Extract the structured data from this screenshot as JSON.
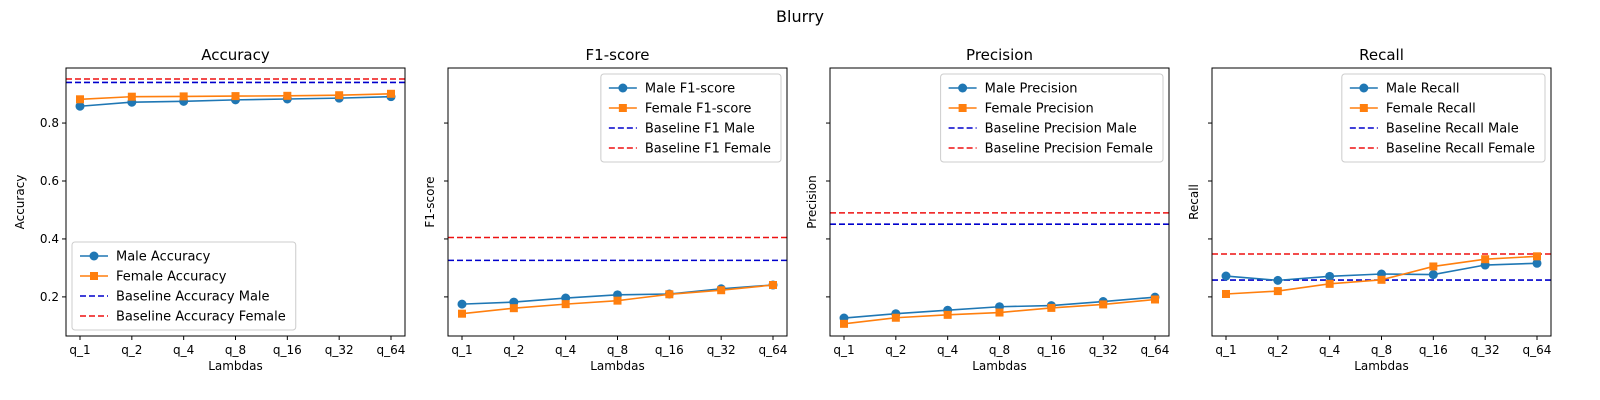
{
  "figure": {
    "suptitle": "Blurry"
  },
  "chart_data": [
    {
      "type": "line",
      "title": "Accuracy",
      "xlabel": "Lambdas",
      "ylabel": "Accuracy",
      "categories": [
        "q_1",
        "q_2",
        "q_4",
        "q_8",
        "q_16",
        "q_32",
        "q_64"
      ],
      "ylim": [
        0.065,
        0.99
      ],
      "yticks": [
        0.2,
        0.4,
        0.6,
        0.8
      ],
      "ytick_labels": [
        "0.2",
        "0.4",
        "0.6",
        "0.8"
      ],
      "legend_position": "lower-left",
      "series": [
        {
          "name": "Male Accuracy",
          "values": [
            0.858,
            0.872,
            0.875,
            0.88,
            0.883,
            0.886,
            0.891
          ],
          "color": "#1f77b4",
          "marker": "circle"
        },
        {
          "name": "Female Accuracy",
          "values": [
            0.882,
            0.891,
            0.892,
            0.893,
            0.894,
            0.896,
            0.901
          ],
          "color": "#ff7f0e",
          "marker": "square"
        }
      ],
      "baselines": [
        {
          "name": "Baseline Accuracy Male",
          "value": 0.94,
          "color": "#0000cc"
        },
        {
          "name": "Baseline Accuracy Female",
          "value": 0.952,
          "color": "#ee1111"
        }
      ]
    },
    {
      "type": "line",
      "title": "F1-score",
      "xlabel": "Lambdas",
      "ylabel": "F1-score",
      "categories": [
        "q_1",
        "q_2",
        "q_4",
        "q_8",
        "q_16",
        "q_32",
        "q_64"
      ],
      "ylim": [
        0.065,
        0.99
      ],
      "yticks": [
        0.2,
        0.4,
        0.6,
        0.8
      ],
      "ytick_labels": [
        "",
        "",
        "",
        ""
      ],
      "legend_position": "upper-right",
      "series": [
        {
          "name": "Male F1-score",
          "values": [
            0.175,
            0.182,
            0.196,
            0.207,
            0.21,
            0.228,
            0.241
          ],
          "color": "#1f77b4",
          "marker": "circle"
        },
        {
          "name": "Female F1-score",
          "values": [
            0.142,
            0.161,
            0.175,
            0.187,
            0.209,
            0.223,
            0.241
          ],
          "color": "#ff7f0e",
          "marker": "square"
        }
      ],
      "baselines": [
        {
          "name": "Baseline F1 Male",
          "value": 0.326,
          "color": "#0000cc"
        },
        {
          "name": "Baseline F1 Female",
          "value": 0.405,
          "color": "#ee1111"
        }
      ]
    },
    {
      "type": "line",
      "title": "Precision",
      "xlabel": "Lambdas",
      "ylabel": "Precision",
      "categories": [
        "q_1",
        "q_2",
        "q_4",
        "q_8",
        "q_16",
        "q_32",
        "q_64"
      ],
      "ylim": [
        0.065,
        0.99
      ],
      "yticks": [
        0.2,
        0.4,
        0.6,
        0.8
      ],
      "ytick_labels": [
        "",
        "",
        "",
        ""
      ],
      "legend_position": "upper-right",
      "series": [
        {
          "name": "Male Precision",
          "values": [
            0.127,
            0.142,
            0.154,
            0.166,
            0.17,
            0.184,
            0.199
          ],
          "color": "#1f77b4",
          "marker": "circle"
        },
        {
          "name": "Female Precision",
          "values": [
            0.107,
            0.128,
            0.138,
            0.146,
            0.162,
            0.174,
            0.191
          ],
          "color": "#ff7f0e",
          "marker": "square"
        }
      ],
      "baselines": [
        {
          "name": "Baseline Precision Male",
          "value": 0.451,
          "color": "#0000cc"
        },
        {
          "name": "Baseline Precision Female",
          "value": 0.49,
          "color": "#ee1111"
        }
      ]
    },
    {
      "type": "line",
      "title": "Recall",
      "xlabel": "Lambdas",
      "ylabel": "Recall",
      "categories": [
        "q_1",
        "q_2",
        "q_4",
        "q_8",
        "q_16",
        "q_32",
        "q_64"
      ],
      "ylim": [
        0.065,
        0.99
      ],
      "yticks": [
        0.2,
        0.4,
        0.6,
        0.8
      ],
      "ytick_labels": [
        "",
        "",
        "",
        ""
      ],
      "legend_position": "upper-right",
      "series": [
        {
          "name": "Male Recall",
          "values": [
            0.272,
            0.257,
            0.271,
            0.279,
            0.277,
            0.31,
            0.316
          ],
          "color": "#1f77b4",
          "marker": "circle"
        },
        {
          "name": "Female Recall",
          "values": [
            0.21,
            0.22,
            0.245,
            0.259,
            0.305,
            0.33,
            0.34
          ],
          "color": "#ff7f0e",
          "marker": "square"
        }
      ],
      "baselines": [
        {
          "name": "Baseline Recall Male",
          "value": 0.258,
          "color": "#0000cc"
        },
        {
          "name": "Baseline Recall Female",
          "value": 0.348,
          "color": "#ee1111"
        }
      ]
    }
  ]
}
